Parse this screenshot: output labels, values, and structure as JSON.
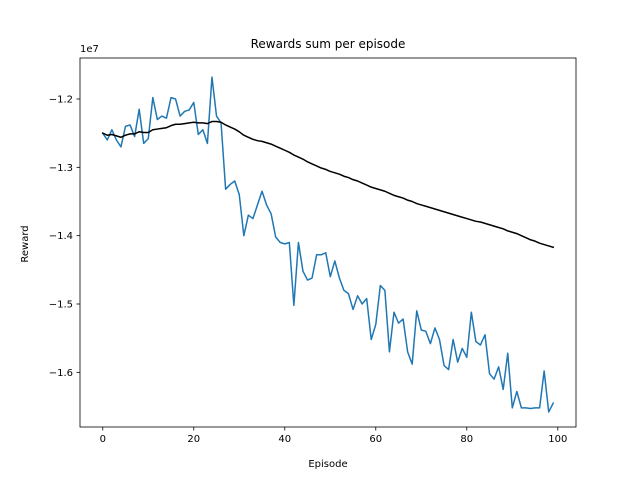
{
  "chart_data": {
    "type": "line",
    "title": "Rewards sum per episode",
    "xlabel": "Episode",
    "ylabel": "Reward",
    "offset_text": "1e7",
    "xlim": [
      -5,
      104
    ],
    "ylim": [
      -16.8,
      -11.4
    ],
    "y_scale_factor": 10000000,
    "x_ticks": [
      0,
      20,
      40,
      60,
      80,
      100
    ],
    "x_tick_labels": [
      "0",
      "20",
      "40",
      "60",
      "80",
      "100"
    ],
    "y_ticks": [
      -16,
      -15,
      -14,
      -13,
      -12
    ],
    "y_tick_labels": [
      "−1.6",
      "−1.5",
      "−1.4",
      "−1.3",
      "−1.2"
    ],
    "grid": false,
    "series": [
      {
        "color": "#1f77b4",
        "x": [
          0,
          1,
          2,
          3,
          4,
          5,
          6,
          7,
          8,
          9,
          10,
          11,
          12,
          13,
          14,
          15,
          16,
          17,
          18,
          19,
          20,
          21,
          22,
          23,
          24,
          25,
          26,
          27,
          28,
          29,
          30,
          31,
          32,
          33,
          34,
          35,
          36,
          37,
          38,
          39,
          40,
          41,
          42,
          43,
          44,
          45,
          46,
          47,
          48,
          49,
          50,
          51,
          52,
          53,
          54,
          55,
          56,
          57,
          58,
          59,
          60,
          61,
          62,
          63,
          64,
          65,
          66,
          67,
          68,
          69,
          70,
          71,
          72,
          73,
          74,
          75,
          76,
          77,
          78,
          79,
          80,
          81,
          82,
          83,
          84,
          85,
          86,
          87,
          88,
          89,
          90,
          91,
          92,
          93,
          94,
          95,
          96,
          97,
          98,
          99
        ],
        "y": [
          -12.5,
          -12.6,
          -12.45,
          -12.6,
          -12.7,
          -12.4,
          -12.38,
          -12.55,
          -12.15,
          -12.65,
          -12.58,
          -11.98,
          -12.3,
          -12.25,
          -12.28,
          -11.98,
          -12.0,
          -12.25,
          -12.18,
          -12.16,
          -12.05,
          -12.52,
          -12.45,
          -12.65,
          -11.68,
          -12.25,
          -12.35,
          -13.32,
          -13.25,
          -13.2,
          -13.4,
          -14.0,
          -13.7,
          -13.75,
          -13.55,
          -13.35,
          -13.55,
          -13.68,
          -14.02,
          -14.1,
          -14.12,
          -14.1,
          -15.02,
          -14.1,
          -14.52,
          -14.65,
          -14.62,
          -14.28,
          -14.28,
          -14.25,
          -14.6,
          -14.37,
          -14.62,
          -14.8,
          -14.85,
          -15.08,
          -14.88,
          -15.0,
          -14.92,
          -15.52,
          -15.3,
          -14.73,
          -14.8,
          -15.7,
          -15.12,
          -15.28,
          -15.22,
          -15.7,
          -15.88,
          -15.1,
          -15.38,
          -15.4,
          -15.58,
          -15.35,
          -15.52,
          -15.9,
          -15.96,
          -15.52,
          -15.85,
          -15.65,
          -15.78,
          -15.12,
          -15.55,
          -15.6,
          -15.45,
          -16.02,
          -16.1,
          -15.92,
          -16.25,
          -15.72,
          -16.52,
          -16.28,
          -16.52,
          -16.52,
          -16.53,
          -16.52,
          -16.52,
          -15.98,
          -16.58,
          -16.45
        ]
      },
      {
        "color": "#000000",
        "x": [
          0,
          1,
          2,
          3,
          4,
          5,
          6,
          7,
          8,
          9,
          10,
          11,
          12,
          13,
          14,
          15,
          16,
          17,
          18,
          19,
          20,
          21,
          22,
          23,
          24,
          25,
          26,
          27,
          28,
          29,
          30,
          31,
          32,
          33,
          34,
          35,
          36,
          37,
          38,
          39,
          40,
          41,
          42,
          43,
          44,
          45,
          46,
          47,
          48,
          49,
          50,
          51,
          52,
          53,
          54,
          55,
          56,
          57,
          58,
          59,
          60,
          61,
          62,
          63,
          64,
          65,
          66,
          67,
          68,
          69,
          70,
          71,
          72,
          73,
          74,
          75,
          76,
          77,
          78,
          79,
          80,
          81,
          82,
          83,
          84,
          85,
          86,
          87,
          88,
          89,
          90,
          91,
          92,
          93,
          94,
          95,
          96,
          97,
          98,
          99
        ],
        "y": [
          -12.5,
          -12.53,
          -12.52,
          -12.54,
          -12.56,
          -12.53,
          -12.51,
          -12.51,
          -12.48,
          -12.49,
          -12.49,
          -12.45,
          -12.44,
          -12.43,
          -12.42,
          -12.39,
          -12.37,
          -12.37,
          -12.36,
          -12.35,
          -12.34,
          -12.35,
          -12.35,
          -12.36,
          -12.33,
          -12.33,
          -12.34,
          -12.38,
          -12.41,
          -12.44,
          -12.48,
          -12.53,
          -12.56,
          -12.59,
          -12.61,
          -12.62,
          -12.64,
          -12.66,
          -12.69,
          -12.72,
          -12.75,
          -12.78,
          -12.82,
          -12.85,
          -12.88,
          -12.92,
          -12.95,
          -12.98,
          -13.01,
          -13.03,
          -13.06,
          -13.08,
          -13.1,
          -13.13,
          -13.15,
          -13.18,
          -13.2,
          -13.23,
          -13.26,
          -13.29,
          -13.31,
          -13.33,
          -13.35,
          -13.38,
          -13.41,
          -13.43,
          -13.45,
          -13.48,
          -13.5,
          -13.53,
          -13.55,
          -13.57,
          -13.59,
          -13.61,
          -13.63,
          -13.65,
          -13.67,
          -13.69,
          -13.71,
          -13.73,
          -13.75,
          -13.77,
          -13.79,
          -13.8,
          -13.82,
          -13.84,
          -13.86,
          -13.88,
          -13.9,
          -13.93,
          -13.95,
          -13.97,
          -14.0,
          -14.03,
          -14.06,
          -14.08,
          -14.11,
          -14.13,
          -14.15,
          -14.17
        ]
      }
    ]
  }
}
